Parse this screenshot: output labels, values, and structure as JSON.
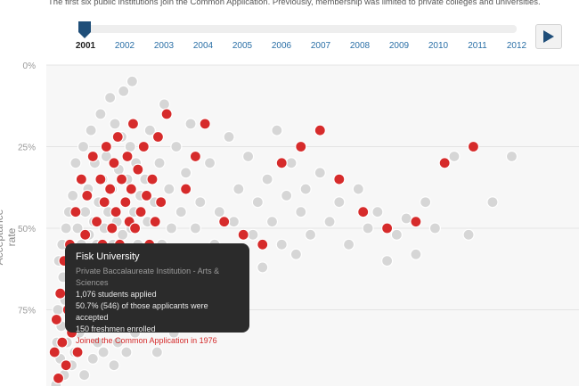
{
  "description": "The first six public institutions join the Common Application. Previously, membership was limited to private colleges and universities.",
  "timeline": {
    "years": [
      "2001",
      "2002",
      "2003",
      "2004",
      "2005",
      "2006",
      "2007",
      "2008",
      "2009",
      "2010",
      "2011",
      "2012"
    ],
    "selected_year": "2001",
    "play_icon": "play-icon"
  },
  "tooltip": {
    "name": "Fisk University",
    "type": "Private Baccalaureate Institution - Arts & Sciences",
    "applied": "1,076 students applied",
    "accepted": "50.7% (546) of those applicants were accepted",
    "enrolled": "150 freshmen enrolled",
    "joined": "Joined the Common Application in 1976"
  },
  "colors": {
    "member": "#d62b2b",
    "nonmember": "#d6d6d6",
    "accent": "#1f4e79"
  },
  "chart_data": {
    "type": "scatter",
    "ylabel": "Acceptance rate",
    "yticks": [
      "0%",
      "25%",
      "50%",
      "75%"
    ],
    "ylim": [
      0,
      100
    ],
    "ydirection": "top-to-bottom",
    "xlim": [
      0,
      1000
    ],
    "grid": true,
    "series": [
      {
        "points": [
          [
            9,
            98
          ],
          [
            11,
            85
          ],
          [
            13,
            75
          ],
          [
            15,
            60
          ],
          [
            17,
            70
          ],
          [
            18,
            90
          ],
          [
            20,
            80
          ],
          [
            22,
            55
          ],
          [
            24,
            65
          ],
          [
            26,
            95
          ],
          [
            28,
            72
          ],
          [
            30,
            50
          ],
          [
            32,
            85
          ],
          [
            34,
            60
          ],
          [
            36,
            45
          ],
          [
            38,
            78
          ],
          [
            40,
            68
          ],
          [
            42,
            92
          ],
          [
            44,
            40
          ],
          [
            46,
            58
          ],
          [
            48,
            88
          ],
          [
            50,
            30
          ],
          [
            52,
            75
          ],
          [
            54,
            50
          ],
          [
            56,
            65
          ],
          [
            58,
            82
          ],
          [
            60,
            35
          ],
          [
            62,
            55
          ],
          [
            64,
            70
          ],
          [
            66,
            25
          ],
          [
            68,
            95
          ],
          [
            70,
            45
          ],
          [
            72,
            62
          ],
          [
            74,
            80
          ],
          [
            76,
            38
          ],
          [
            78,
            52
          ],
          [
            80,
            72
          ],
          [
            82,
            20
          ],
          [
            84,
            60
          ],
          [
            86,
            90
          ],
          [
            88,
            48
          ],
          [
            90,
            30
          ],
          [
            92,
            67
          ],
          [
            94,
            55
          ],
          [
            96,
            85
          ],
          [
            98,
            42
          ],
          [
            100,
            75
          ],
          [
            102,
            15
          ],
          [
            104,
            58
          ],
          [
            106,
            35
          ],
          [
            108,
            88
          ],
          [
            110,
            50
          ],
          [
            112,
            68
          ],
          [
            114,
            28
          ],
          [
            116,
            80
          ],
          [
            118,
            45
          ],
          [
            120,
            62
          ],
          [
            122,
            10
          ],
          [
            124,
            73
          ],
          [
            126,
            38
          ],
          [
            128,
            55
          ],
          [
            130,
            92
          ],
          [
            132,
            18
          ],
          [
            134,
            65
          ],
          [
            136,
            48
          ],
          [
            138,
            85
          ],
          [
            140,
            32
          ],
          [
            142,
            58
          ],
          [
            144,
            75
          ],
          [
            146,
            22
          ],
          [
            148,
            52
          ],
          [
            150,
            8
          ],
          [
            152,
            68
          ],
          [
            154,
            42
          ],
          [
            156,
            88
          ],
          [
            158,
            35
          ],
          [
            160,
            60
          ],
          [
            162,
            78
          ],
          [
            164,
            25
          ],
          [
            166,
            50
          ],
          [
            168,
            5
          ],
          [
            170,
            70
          ],
          [
            172,
            45
          ],
          [
            174,
            82
          ],
          [
            176,
            30
          ],
          [
            178,
            62
          ],
          [
            180,
            55
          ],
          [
            185,
            40
          ],
          [
            190,
            72
          ],
          [
            195,
            35
          ],
          [
            200,
            48
          ],
          [
            205,
            20
          ],
          [
            210,
            60
          ],
          [
            215,
            42
          ],
          [
            220,
            88
          ],
          [
            225,
            30
          ],
          [
            230,
            55
          ],
          [
            235,
            12
          ],
          [
            240,
            68
          ],
          [
            245,
            38
          ],
          [
            250,
            50
          ],
          [
            255,
            82
          ],
          [
            260,
            25
          ],
          [
            265,
            58
          ],
          [
            270,
            45
          ],
          [
            275,
            72
          ],
          [
            280,
            33
          ],
          [
            285,
            62
          ],
          [
            290,
            18
          ],
          [
            300,
            50
          ],
          [
            310,
            42
          ],
          [
            320,
            65
          ],
          [
            330,
            30
          ],
          [
            340,
            55
          ],
          [
            350,
            45
          ],
          [
            360,
            60
          ],
          [
            370,
            22
          ],
          [
            380,
            48
          ],
          [
            390,
            38
          ],
          [
            400,
            58
          ],
          [
            410,
            28
          ],
          [
            420,
            52
          ],
          [
            430,
            42
          ],
          [
            440,
            62
          ],
          [
            450,
            35
          ],
          [
            460,
            48
          ],
          [
            470,
            20
          ],
          [
            480,
            55
          ],
          [
            490,
            40
          ],
          [
            500,
            30
          ],
          [
            510,
            58
          ],
          [
            520,
            45
          ],
          [
            530,
            38
          ],
          [
            540,
            52
          ],
          [
            560,
            33
          ],
          [
            580,
            48
          ],
          [
            600,
            42
          ],
          [
            620,
            55
          ],
          [
            640,
            38
          ],
          [
            660,
            50
          ],
          [
            680,
            45
          ],
          [
            700,
            60
          ],
          [
            720,
            52
          ],
          [
            740,
            47
          ],
          [
            760,
            58
          ],
          [
            780,
            42
          ],
          [
            800,
            50
          ],
          [
            840,
            28
          ],
          [
            870,
            52
          ],
          [
            920,
            42
          ],
          [
            960,
            28
          ]
        ]
      },
      {
        "points": [
          [
            6,
            88
          ],
          [
            10,
            78
          ],
          [
            14,
            96
          ],
          [
            18,
            70
          ],
          [
            22,
            85
          ],
          [
            26,
            60
          ],
          [
            30,
            92
          ],
          [
            34,
            75
          ],
          [
            38,
            55
          ],
          [
            42,
            82
          ],
          [
            46,
            68
          ],
          [
            50,
            45
          ],
          [
            54,
            88
          ],
          [
            58,
            62
          ],
          [
            62,
            35
          ],
          [
            66,
            78
          ],
          [
            70,
            52
          ],
          [
            74,
            40
          ],
          [
            78,
            72
          ],
          [
            82,
            58
          ],
          [
            86,
            28
          ],
          [
            90,
            65
          ],
          [
            94,
            48
          ],
          [
            98,
            80
          ],
          [
            102,
            35
          ],
          [
            106,
            55
          ],
          [
            110,
            42
          ],
          [
            114,
            25
          ],
          [
            118,
            62
          ],
          [
            122,
            38
          ],
          [
            126,
            50
          ],
          [
            130,
            30
          ],
          [
            134,
            45
          ],
          [
            138,
            22
          ],
          [
            142,
            55
          ],
          [
            146,
            35
          ],
          [
            150,
            60
          ],
          [
            154,
            42
          ],
          [
            158,
            28
          ],
          [
            162,
            48
          ],
          [
            166,
            38
          ],
          [
            170,
            18
          ],
          [
            174,
            50
          ],
          [
            180,
            32
          ],
          [
            186,
            45
          ],
          [
            192,
            25
          ],
          [
            198,
            40
          ],
          [
            204,
            55
          ],
          [
            210,
            35
          ],
          [
            216,
            48
          ],
          [
            222,
            22
          ],
          [
            228,
            42
          ],
          [
            240,
            15
          ],
          [
            260,
            60
          ],
          [
            280,
            38
          ],
          [
            300,
            28
          ],
          [
            320,
            18
          ],
          [
            360,
            48
          ],
          [
            400,
            52
          ],
          [
            440,
            55
          ],
          [
            480,
            30
          ],
          [
            520,
            25
          ],
          [
            560,
            20
          ],
          [
            600,
            35
          ],
          [
            650,
            45
          ],
          [
            700,
            50
          ],
          [
            760,
            48
          ],
          [
            820,
            30
          ],
          [
            880,
            25
          ]
        ]
      }
    ]
  }
}
